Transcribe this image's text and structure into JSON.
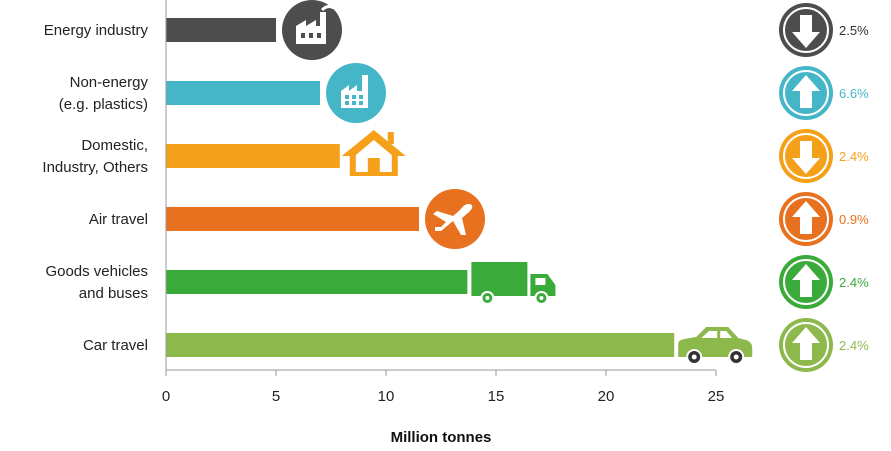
{
  "chart_data": {
    "type": "bar",
    "orientation": "horizontal",
    "xlabel": "Million tonnes",
    "xlim": [
      0,
      25
    ],
    "xticks": [
      "0",
      "5",
      "10",
      "15",
      "20",
      "25"
    ],
    "grid": false,
    "categories": [
      {
        "lines": [
          "Energy industry"
        ],
        "value": 5.0,
        "color": "#4d4d4d",
        "icon": "factory-icon",
        "change": "2.5%",
        "direction": "down"
      },
      {
        "lines": [
          "Non-energy",
          "(e.g. plastics)"
        ],
        "value": 7.0,
        "color": "#45b6c7",
        "icon": "building-icon",
        "change": "6.6%",
        "direction": "up"
      },
      {
        "lines": [
          "Domestic,",
          "Industry, Others"
        ],
        "value": 7.9,
        "color": "#f5a01a",
        "icon": "house-icon",
        "change": "2.4%",
        "direction": "down"
      },
      {
        "lines": [
          "Air travel"
        ],
        "value": 11.5,
        "color": "#e8711f",
        "icon": "airplane-icon",
        "change": "0.9%",
        "direction": "up"
      },
      {
        "lines": [
          "Goods vehicles",
          "and buses"
        ],
        "value": 13.7,
        "color": "#3aaa3a",
        "icon": "truck-icon",
        "change": "2.4%",
        "direction": "up"
      },
      {
        "lines": [
          "Car travel"
        ],
        "value": 23.1,
        "color": "#8db94c",
        "icon": "car-icon",
        "change": "2.4%",
        "direction": "up"
      }
    ]
  }
}
